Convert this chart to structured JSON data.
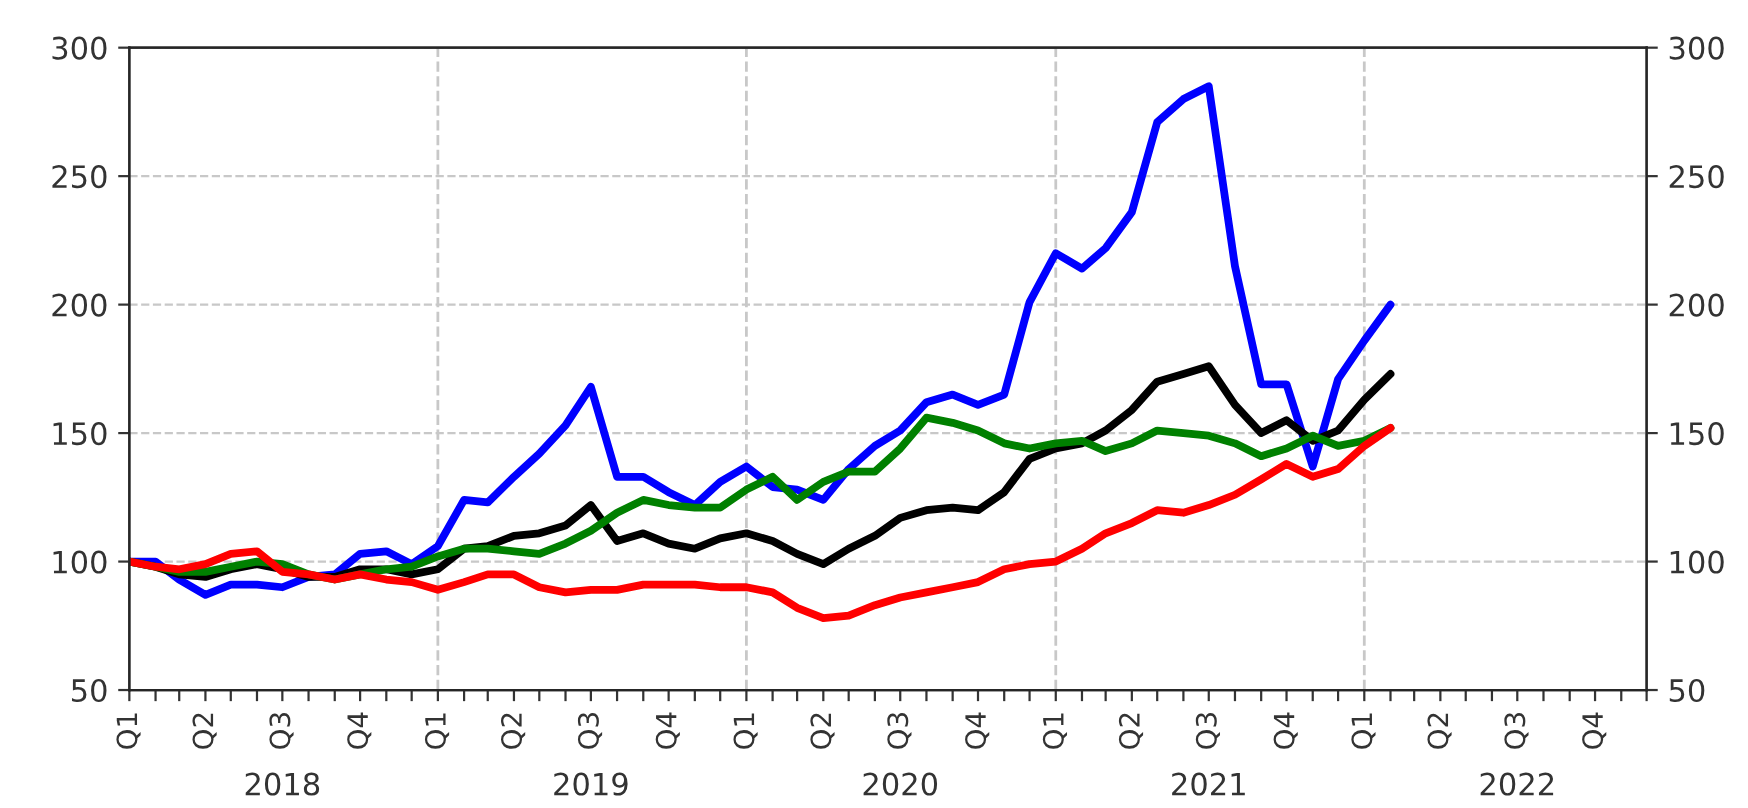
{
  "chart_data": {
    "type": "line",
    "x": [
      "2018-01",
      "2018-02",
      "2018-03",
      "2018-04",
      "2018-05",
      "2018-06",
      "2018-07",
      "2018-08",
      "2018-09",
      "2018-10",
      "2018-11",
      "2018-12",
      "2019-01",
      "2019-02",
      "2019-03",
      "2019-04",
      "2019-05",
      "2019-06",
      "2019-07",
      "2019-08",
      "2019-09",
      "2019-10",
      "2019-11",
      "2019-12",
      "2020-01",
      "2020-02",
      "2020-03",
      "2020-04",
      "2020-05",
      "2020-06",
      "2020-07",
      "2020-08",
      "2020-09",
      "2020-10",
      "2020-11",
      "2020-12",
      "2021-01",
      "2021-02",
      "2021-03",
      "2021-04",
      "2021-05",
      "2021-06",
      "2021-07",
      "2021-08",
      "2021-09",
      "2021-10",
      "2021-11",
      "2021-12",
      "2022-01",
      "2022-02"
    ],
    "series": [
      {
        "color": "#0000ff",
        "values": [
          100,
          100,
          93,
          87,
          91,
          91,
          90,
          94,
          95,
          103,
          104,
          99,
          106,
          124,
          123,
          133,
          142,
          153,
          168,
          133,
          133,
          127,
          122,
          131,
          137,
          129,
          128,
          124,
          136,
          145,
          151,
          162,
          165,
          161,
          165,
          201,
          220,
          214,
          222,
          236,
          271,
          280,
          285,
          215,
          169,
          169,
          137,
          171,
          186,
          200
        ]
      },
      {
        "color": "#000000",
        "values": [
          100,
          98,
          95,
          94,
          97,
          99,
          97,
          94,
          94,
          97,
          97,
          95,
          97,
          105,
          106,
          110,
          111,
          114,
          122,
          108,
          111,
          107,
          105,
          109,
          111,
          108,
          103,
          99,
          105,
          110,
          117,
          120,
          121,
          120,
          127,
          140,
          144,
          146,
          151,
          159,
          170,
          173,
          176,
          161,
          150,
          155,
          147,
          151,
          163,
          173
        ]
      },
      {
        "color": "#008000",
        "values": [
          100,
          98,
          96,
          96,
          98,
          100,
          99,
          95,
          93,
          95,
          97,
          98,
          102,
          105,
          105,
          104,
          103,
          107,
          112,
          119,
          124,
          122,
          121,
          121,
          128,
          133,
          124,
          131,
          135,
          135,
          144,
          156,
          154,
          151,
          146,
          144,
          146,
          147,
          143,
          146,
          151,
          150,
          149,
          146,
          141,
          144,
          149,
          145,
          147,
          152
        ]
      },
      {
        "color": "#ff0000",
        "values": [
          100,
          98,
          97,
          99,
          103,
          104,
          96,
          95,
          93,
          95,
          93,
          92,
          89,
          92,
          95,
          95,
          90,
          88,
          89,
          89,
          91,
          91,
          91,
          90,
          90,
          88,
          82,
          78,
          79,
          83,
          86,
          88,
          90,
          92,
          97,
          99,
          100,
          105,
          111,
          115,
          120,
          119,
          122,
          126,
          132,
          138,
          133,
          136,
          145,
          152
        ]
      }
    ],
    "xlim": [
      "2018-01",
      "2022-12"
    ],
    "xticks": [
      {
        "value": "2018-01",
        "label": "Q1"
      },
      {
        "value": "2018-02",
        "label": null
      },
      {
        "value": "2018-03",
        "label": null
      },
      {
        "value": "2018-04",
        "label": "Q2"
      },
      {
        "value": "2018-05",
        "label": null
      },
      {
        "value": "2018-06",
        "label": null
      },
      {
        "value": "2018-07",
        "label": "Q3"
      },
      {
        "value": "2018-08",
        "label": null
      },
      {
        "value": "2018-09",
        "label": null
      },
      {
        "value": "2018-10",
        "label": "Q4"
      },
      {
        "value": "2018-11",
        "label": null
      },
      {
        "value": "2018-12",
        "label": null
      },
      {
        "value": "2019-01",
        "label": "Q1"
      },
      {
        "value": "2019-02",
        "label": null
      },
      {
        "value": "2019-03",
        "label": null
      },
      {
        "value": "2019-04",
        "label": "Q2"
      },
      {
        "value": "2019-05",
        "label": null
      },
      {
        "value": "2019-06",
        "label": null
      },
      {
        "value": "2019-07",
        "label": "Q3"
      },
      {
        "value": "2019-08",
        "label": null
      },
      {
        "value": "2019-09",
        "label": null
      },
      {
        "value": "2019-10",
        "label": "Q4"
      },
      {
        "value": "2019-11",
        "label": null
      },
      {
        "value": "2019-12",
        "label": null
      },
      {
        "value": "2020-01",
        "label": "Q1"
      },
      {
        "value": "2020-02",
        "label": null
      },
      {
        "value": "2020-03",
        "label": null
      },
      {
        "value": "2020-04",
        "label": "Q2"
      },
      {
        "value": "2020-05",
        "label": null
      },
      {
        "value": "2020-06",
        "label": null
      },
      {
        "value": "2020-07",
        "label": "Q3"
      },
      {
        "value": "2020-08",
        "label": null
      },
      {
        "value": "2020-09",
        "label": null
      },
      {
        "value": "2020-10",
        "label": "Q4"
      },
      {
        "value": "2020-11",
        "label": null
      },
      {
        "value": "2020-12",
        "label": null
      },
      {
        "value": "2021-01",
        "label": "Q1"
      },
      {
        "value": "2021-02",
        "label": null
      },
      {
        "value": "2021-03",
        "label": null
      },
      {
        "value": "2021-04",
        "label": "Q2"
      },
      {
        "value": "2021-05",
        "label": null
      },
      {
        "value": "2021-06",
        "label": null
      },
      {
        "value": "2021-07",
        "label": "Q3"
      },
      {
        "value": "2021-08",
        "label": null
      },
      {
        "value": "2021-09",
        "label": null
      },
      {
        "value": "2021-10",
        "label": "Q4"
      },
      {
        "value": "2021-11",
        "label": null
      },
      {
        "value": "2021-12",
        "label": null
      },
      {
        "value": "2022-01",
        "label": "Q1"
      },
      {
        "value": "2022-02",
        "label": null
      },
      {
        "value": "2022-03",
        "label": null
      },
      {
        "value": "2022-04",
        "label": "Q2"
      },
      {
        "value": "2022-05",
        "label": null
      },
      {
        "value": "2022-06",
        "label": null
      },
      {
        "value": "2022-07",
        "label": "Q3"
      },
      {
        "value": "2022-08",
        "label": null
      },
      {
        "value": "2022-09",
        "label": null
      },
      {
        "value": "2022-10",
        "label": "Q4"
      },
      {
        "value": "2022-11",
        "label": null
      },
      {
        "value": "2022-12",
        "label": null
      }
    ],
    "ylim": [
      50,
      300
    ],
    "yticks": [
      50,
      100,
      150,
      200,
      250,
      300
    ],
    "y2lim": [
      50,
      300
    ],
    "y2ticks": [
      50,
      100,
      150,
      200,
      250,
      300
    ],
    "grid": "y",
    "legend": false,
    "marker": "none",
    "line_style": "solid",
    "ref_lines": [
      {
        "axis": "x",
        "value": "2019-01",
        "color": "#c8c8c8",
        "line_style": "dashed"
      },
      {
        "axis": "x",
        "value": "2020-01",
        "color": "#c8c8c8",
        "line_style": "dashed"
      },
      {
        "axis": "x",
        "value": "2021-01",
        "color": "#c8c8c8",
        "line_style": "dashed"
      },
      {
        "axis": "x",
        "value": "2022-01",
        "color": "#c8c8c8",
        "line_style": "dashed"
      }
    ],
    "annotations": [
      "2018",
      "2019",
      "2020",
      "2021",
      "2022"
    ]
  }
}
